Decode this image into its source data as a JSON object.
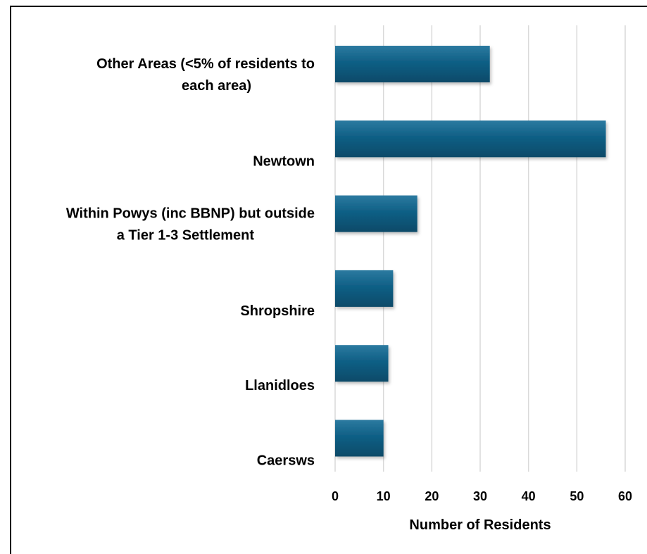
{
  "chart_data": {
    "type": "bar",
    "orientation": "horizontal",
    "categories": [
      "Other Areas (<5% of residents to each area)",
      "Newtown",
      "Within Powys (inc BBNP) but outside a Tier 1-3 Settlement",
      "Shropshire",
      "Llanidloes",
      "Caersws"
    ],
    "category_lines": [
      [
        "Other Areas (<5% of residents to",
        "each area)"
      ],
      [
        "Newtown"
      ],
      [
        "Within Powys (inc BBNP) but outside",
        "a Tier 1-3 Settlement"
      ],
      [
        "Shropshire"
      ],
      [
        "Llanidloes"
      ],
      [
        "Caersws"
      ]
    ],
    "values": [
      32,
      56,
      17,
      12,
      11,
      10
    ],
    "xlabel": "Number of Residents",
    "ylabel": "",
    "title": "",
    "xlim": [
      0,
      60
    ],
    "xticks": [
      "0",
      "10",
      "20",
      "30",
      "40",
      "50",
      "60"
    ],
    "grid": "vertical",
    "legend": "none",
    "bar_color": "#0e5c80",
    "bar_color_dark": "#0a4a68"
  }
}
